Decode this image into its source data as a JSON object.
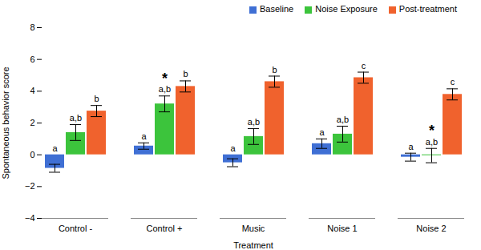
{
  "chart_data": {
    "type": "bar",
    "x_label": "Treatment",
    "y_label": "Spontaneous behavior score",
    "categories": [
      "Control -",
      "Control +",
      "Music",
      "Noise 1",
      "Noise 2"
    ],
    "series": [
      {
        "name": "Baseline",
        "color": "#3f6fd4",
        "values": [
          -0.85,
          0.55,
          -0.5,
          0.7,
          -0.15
        ],
        "errors": [
          0.25,
          0.2,
          0.25,
          0.3,
          0.25
        ],
        "letters": [
          "a",
          "a",
          "a",
          "a",
          "a"
        ]
      },
      {
        "name": "Noise Exposure",
        "color": "#3cc43c",
        "values": [
          1.4,
          3.2,
          1.15,
          1.3,
          -0.05
        ],
        "errors": [
          0.5,
          0.5,
          0.5,
          0.5,
          0.45
        ],
        "letters": [
          "a,b",
          "a,b",
          "a,b",
          "a,b",
          "a,b"
        ]
      },
      {
        "name": "Post-treatment",
        "color": "#f0622d",
        "values": [
          2.75,
          4.3,
          4.6,
          4.85,
          3.8
        ],
        "errors": [
          0.35,
          0.35,
          0.35,
          0.35,
          0.35
        ],
        "letters": [
          "b",
          "b",
          "b",
          "c",
          "c"
        ]
      }
    ],
    "annotations": [
      {
        "category": "Control +",
        "series": "Noise Exposure",
        "text": "*"
      },
      {
        "category": "Noise 2",
        "series": "Noise Exposure",
        "text": "*"
      }
    ],
    "ylim": [
      -4,
      8
    ],
    "yticks": [
      -4,
      -2,
      0,
      2,
      4,
      6,
      8
    ],
    "legend": "top-right",
    "grid": false
  }
}
